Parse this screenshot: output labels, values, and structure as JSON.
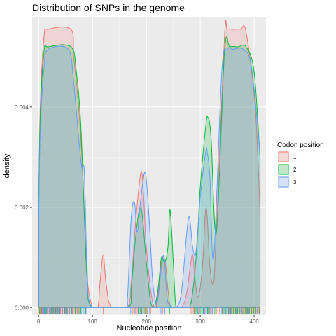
{
  "chart_data": {
    "type": "area",
    "title": "Distribution of SNPs in the genome",
    "xlabel": "Nucleotide position",
    "ylabel": "density",
    "xlim": [
      -12,
      422
    ],
    "ylim": [
      -0.00015,
      0.0058
    ],
    "x_ticks": [
      0,
      100,
      200,
      300,
      400
    ],
    "x_tick_labels": [
      "0",
      "100",
      "200",
      "300",
      "400"
    ],
    "y_ticks": [
      0,
      0.002,
      0.004
    ],
    "y_tick_labels": [
      "0.000",
      "0.002",
      "0.004"
    ],
    "grid": true,
    "legend": {
      "title": "Codon position",
      "placement": "right"
    },
    "series": [
      {
        "name": "1",
        "color": "#F8766D",
        "x": [
          0,
          3,
          10,
          18,
          60,
          65,
          72,
          80,
          85,
          90,
          100,
          110,
          114,
          120,
          125,
          135,
          165,
          172,
          180,
          190,
          195,
          200,
          210,
          218,
          228,
          235,
          245,
          265,
          275,
          285,
          290,
          296,
          304,
          311,
          318,
          325,
          330,
          345,
          350,
          360,
          375,
          385,
          402,
          411
        ],
        "y": [
          0.0021,
          0.004,
          0.0054,
          0.00555,
          0.00555,
          0.005,
          0.0043,
          0.0031,
          0.0018,
          0.0006,
          0.0,
          0.0,
          0.0005,
          0.00105,
          0.0005,
          0.0,
          0.0,
          0.0005,
          0.0017,
          0.0027,
          0.0022,
          0.0012,
          0.0002,
          0.0,
          0.0009,
          0.0009,
          0.0,
          0.0,
          0.0003,
          0.00105,
          0.0006,
          0.0002,
          0.0008,
          0.002,
          0.0008,
          0.0005,
          0.0016,
          0.0054,
          0.00555,
          0.00555,
          0.00555,
          0.0055,
          0.004,
          0.0019
        ]
      },
      {
        "name": "2",
        "color": "#00BA38",
        "x": [
          0,
          3,
          10,
          18,
          60,
          70,
          78,
          85,
          90,
          100,
          165,
          172,
          180,
          190,
          200,
          208,
          215,
          222,
          228,
          234,
          240,
          244,
          250,
          255,
          265,
          280,
          288,
          295,
          300,
          310,
          314,
          320,
          330,
          345,
          355,
          370,
          385,
          400,
          411
        ],
        "y": [
          0.002,
          0.0038,
          0.0051,
          0.0052,
          0.0052,
          0.0047,
          0.0037,
          0.0018,
          0.0006,
          0.0,
          0.0,
          0.0004,
          0.0014,
          0.002,
          0.0009,
          0.0001,
          0.0,
          0.0004,
          0.001,
          0.0009,
          0.0012,
          0.00195,
          0.0009,
          0.0,
          0.0,
          0.0,
          0.0005,
          0.0014,
          0.0024,
          0.0036,
          0.0038,
          0.0034,
          0.0015,
          0.0051,
          0.0052,
          0.0052,
          0.0052,
          0.0047,
          0.003
        ]
      },
      {
        "name": "3",
        "color": "#619CFF",
        "x": [
          0,
          3,
          10,
          18,
          55,
          65,
          75,
          80,
          85,
          90,
          100,
          160,
          165,
          172,
          178,
          183,
          190,
          198,
          205,
          212,
          220,
          228,
          233,
          240,
          255,
          265,
          275,
          280,
          286,
          292,
          300,
          310,
          313,
          318,
          325,
          340,
          350,
          360,
          380,
          395,
          411
        ],
        "y": [
          0.0017,
          0.0035,
          0.0048,
          0.00515,
          0.00515,
          0.0045,
          0.0033,
          0.0028,
          0.0027,
          0.0008,
          0.0,
          0.0,
          0.0002,
          0.0018,
          0.0021,
          0.0015,
          0.0022,
          0.0027,
          0.0018,
          0.0005,
          0.0001,
          0.0008,
          0.001,
          0.0001,
          0.0,
          0.0003,
          0.0015,
          0.0018,
          0.0012,
          0.0011,
          0.0022,
          0.0031,
          0.0031,
          0.0026,
          0.001,
          0.0047,
          0.00515,
          0.00515,
          0.00515,
          0.0048,
          0.0031
        ]
      }
    ],
    "rug": [
      {
        "series": "1",
        "x": [
          1,
          3,
          6,
          9,
          12,
          15,
          19,
          22,
          26,
          29,
          33,
          37,
          41,
          45,
          50,
          54,
          58,
          63,
          66,
          72,
          76,
          82,
          120,
          175,
          180,
          183,
          186,
          189,
          194,
          198,
          202,
          208,
          230,
          283,
          287,
          291,
          297,
          303,
          308,
          315,
          322,
          330,
          336,
          343,
          346,
          350,
          354,
          358,
          362,
          366,
          370,
          375,
          380,
          384,
          388,
          392,
          396,
          400,
          405,
          409
        ]
      },
      {
        "series": "2",
        "x": [
          2,
          5,
          8,
          11,
          14,
          17,
          21,
          24,
          27,
          31,
          35,
          39,
          43,
          48,
          52,
          56,
          61,
          68,
          74,
          79,
          87,
          173,
          177,
          185,
          191,
          196,
          200,
          229,
          243,
          246,
          289,
          295,
          301,
          306,
          311,
          313,
          317,
          320,
          327,
          341,
          347,
          352,
          356,
          361,
          365,
          369,
          373,
          378,
          383,
          387,
          391,
          395,
          399,
          403,
          407,
          410
        ]
      },
      {
        "series": "3",
        "x": [
          4,
          7,
          10,
          13,
          16,
          20,
          23,
          28,
          32,
          36,
          40,
          44,
          49,
          53,
          57,
          62,
          70,
          78,
          84,
          88,
          171,
          178,
          188,
          192,
          199,
          206,
          227,
          234,
          268,
          277,
          281,
          293,
          299,
          305,
          309,
          314,
          319,
          323,
          340,
          345,
          349,
          353,
          357,
          363,
          367,
          372,
          377,
          381,
          386,
          390,
          394,
          398,
          402,
          406,
          411
        ]
      }
    ]
  }
}
